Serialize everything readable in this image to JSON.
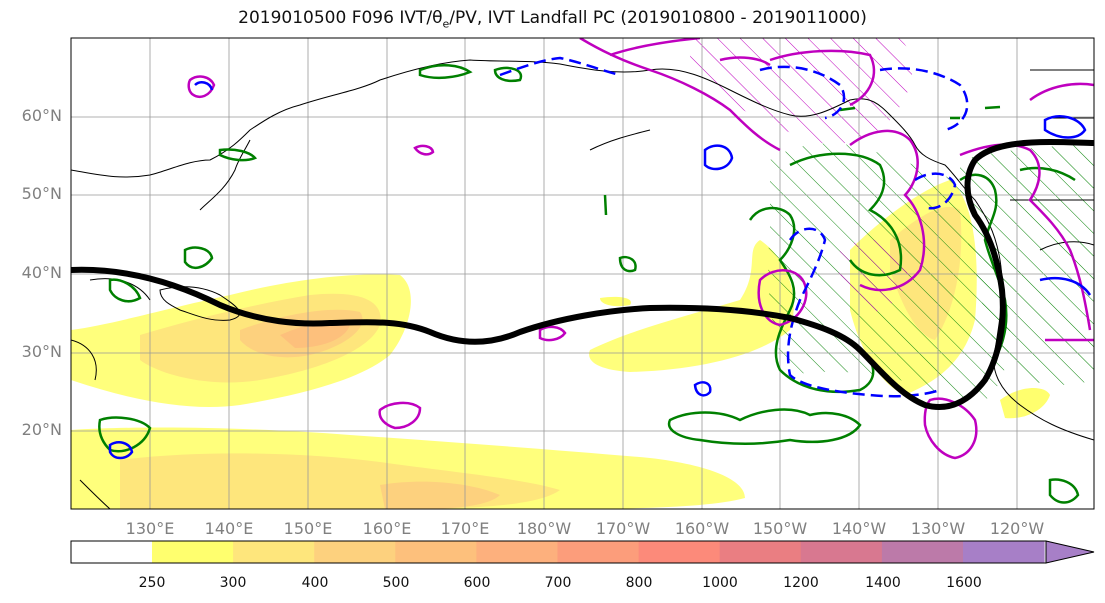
{
  "title_main": "2019010500 F096 IVT/θ",
  "title_sub": "e",
  "title_rest": "/PV, IVT Landfall PC (2019010800 - 2019011000)",
  "lat_labels": [
    "60°N",
    "50°N",
    "40°N",
    "30°N",
    "20°N"
  ],
  "lon_labels": [
    "130°E",
    "140°E",
    "150°E",
    "160°E",
    "170°E",
    "180°W",
    "170°W",
    "160°W",
    "150°W",
    "140°W",
    "130°W",
    "120°W"
  ],
  "colorbar": {
    "ticks": [
      "250",
      "300",
      "400",
      "500",
      "600",
      "700",
      "800",
      "1000",
      "1200",
      "1400",
      "1600"
    ],
    "colors": [
      "#ffff6e",
      "#fee67c",
      "#fdd17e",
      "#fdc07c",
      "#fdb07d",
      "#fc9d7b",
      "#fc8a7a",
      "#ea7e82",
      "#d87890",
      "#bc7aa9",
      "#a77fc7"
    ]
  },
  "contour_colors": {
    "jet_axis": "#000000",
    "theta_e": "#008000",
    "pv_high": "#bf00bf",
    "pv_dashed": "#0000ff"
  }
}
